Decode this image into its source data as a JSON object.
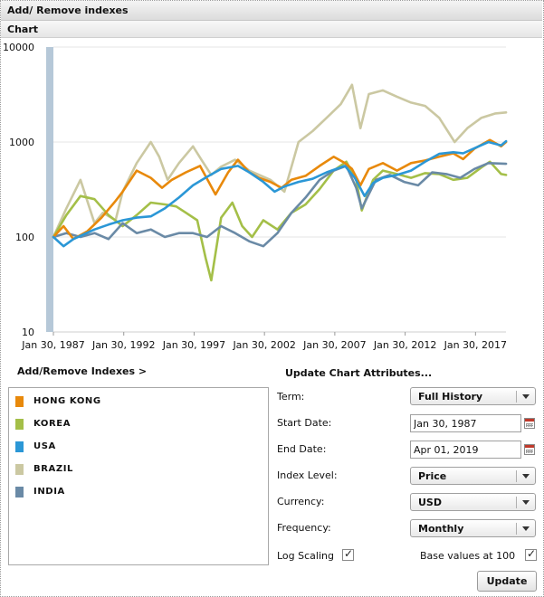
{
  "panel": {
    "title": "Add/ Remove indexes",
    "chart_tab": "Chart"
  },
  "chart_data": {
    "type": "line",
    "title": "",
    "xlabel": "",
    "ylabel": "",
    "log_scale": true,
    "grid": true,
    "x_start": "1987-01-30",
    "x_end": "2019-04-01",
    "ylim": [
      10,
      10000
    ],
    "y_ticks": [
      "10",
      "100",
      "1000",
      "10000"
    ],
    "x_ticks": [
      "Jan 30, 1987",
      "Jan 30, 1992",
      "Jan 30, 1997",
      "Jan 30, 2002",
      "Jan 30, 2007",
      "Jan 30, 2012",
      "Jan 30, 2017"
    ],
    "series": [
      {
        "name": "HONG KONG",
        "color": "#e8890b",
        "x": [
          1987.08,
          1987.8,
          1988.5,
          1989.5,
          1990.5,
          1991.5,
          1992,
          1993,
          1994,
          1994.8,
          1995.5,
          1996.5,
          1997.5,
          1998.6,
          1999.5,
          2000.2,
          2001,
          2001.7,
          2002.5,
          2003.3,
          2004,
          2005,
          2006,
          2007,
          2007.8,
          2008.3,
          2008.9,
          2009.5,
          2010.5,
          2011.5,
          2012.5,
          2013.5,
          2014.5,
          2015.5,
          2016.2,
          2017,
          2018.1,
          2018.9,
          2019.25
        ],
        "y": [
          100,
          130,
          95,
          115,
          160,
          240,
          300,
          500,
          420,
          330,
          400,
          480,
          560,
          280,
          480,
          650,
          480,
          420,
          380,
          330,
          400,
          440,
          560,
          700,
          600,
          520,
          350,
          520,
          600,
          500,
          600,
          640,
          700,
          760,
          660,
          850,
          1050,
          900,
          1000
        ]
      },
      {
        "name": "KOREA",
        "color": "#a4bf48",
        "x": [
          1987.08,
          1988,
          1989,
          1990,
          1991,
          1992,
          1993,
          1994,
          1995,
          1995.8,
          1996.5,
          1997.3,
          1997.9,
          1998.3,
          1999,
          1999.8,
          2000.5,
          2001.2,
          2002,
          2003,
          2004,
          2005,
          2006,
          2007,
          2007.9,
          2008.6,
          2009,
          2009.8,
          2010.5,
          2011.5,
          2012.5,
          2013.5,
          2014.5,
          2015.5,
          2016.5,
          2017.5,
          2018.1,
          2018.9,
          2019.25
        ],
        "y": [
          100,
          170,
          270,
          250,
          170,
          130,
          170,
          230,
          220,
          210,
          180,
          150,
          60,
          35,
          160,
          230,
          130,
          100,
          150,
          120,
          180,
          220,
          320,
          500,
          620,
          400,
          190,
          400,
          500,
          460,
          420,
          470,
          460,
          400,
          420,
          540,
          620,
          460,
          450
        ]
      },
      {
        "name": "USA",
        "color": "#2b97d6",
        "x": [
          1987.08,
          1987.8,
          1988.5,
          1990,
          1991,
          1992,
          1993,
          1994,
          1995,
          1996,
          1997,
          1998,
          1999,
          2000.2,
          2001,
          2002,
          2002.8,
          2003.5,
          2004.5,
          2005.5,
          2006.5,
          2007.8,
          2008.5,
          2009.2,
          2009.8,
          2010.5,
          2011.5,
          2012.5,
          2013.5,
          2014.5,
          2015.5,
          2016.2,
          2017,
          2018,
          2018.9,
          2019.25
        ],
        "y": [
          100,
          80,
          95,
          120,
          135,
          150,
          160,
          165,
          200,
          260,
          350,
          430,
          520,
          560,
          480,
          380,
          300,
          340,
          380,
          410,
          480,
          560,
          420,
          270,
          370,
          420,
          450,
          500,
          620,
          750,
          780,
          760,
          860,
          1000,
          920,
          1020
        ]
      },
      {
        "name": "BRAZIL",
        "color": "#cbc8a2",
        "x": [
          1987.08,
          1988,
          1989,
          1990,
          1990.6,
          1991.5,
          1992,
          1993,
          1994,
          1994.6,
          1995.2,
          1996,
          1997,
          1997.6,
          1998.3,
          1999,
          2000,
          2001,
          2002.5,
          2003.5,
          2004.5,
          2005.5,
          2006.5,
          2007.5,
          2008.3,
          2008.9,
          2009.5,
          2010.5,
          2011.5,
          2012.5,
          2013.5,
          2014.5,
          2015.6,
          2016.5,
          2017.5,
          2018.5,
          2019.25
        ],
        "y": [
          100,
          200,
          400,
          140,
          180,
          150,
          300,
          600,
          1000,
          700,
          400,
          600,
          900,
          650,
          450,
          550,
          650,
          500,
          400,
          300,
          1000,
          1300,
          1800,
          2500,
          4000,
          1400,
          3200,
          3500,
          3000,
          2600,
          2400,
          1800,
          1000,
          1400,
          1800,
          2000,
          2050
        ]
      },
      {
        "name": "INDIA",
        "color": "#6a8aa6",
        "x": [
          1987.08,
          1988,
          1989,
          1990,
          1991,
          1992,
          1993,
          1994,
          1995,
          1996,
          1997,
          1998,
          1999,
          2000,
          2001,
          2002,
          2003,
          2004,
          2005,
          2006,
          2007,
          2007.9,
          2008.6,
          2009,
          2010,
          2011,
          2012,
          2013,
          2014,
          2015,
          2016,
          2017,
          2018,
          2019.25
        ],
        "y": [
          100,
          110,
          100,
          110,
          95,
          140,
          110,
          120,
          100,
          110,
          110,
          100,
          130,
          110,
          90,
          80,
          110,
          180,
          260,
          400,
          500,
          560,
          330,
          200,
          400,
          450,
          380,
          350,
          480,
          460,
          420,
          520,
          600,
          590
        ]
      }
    ]
  },
  "left_panel": {
    "heading": "Add/Remove Indexes >",
    "legend": [
      "HONG KONG",
      "KOREA",
      "USA",
      "BRAZIL",
      "INDIA"
    ],
    "legend_colors": [
      "#e8890b",
      "#a4bf48",
      "#2b97d6",
      "#cbc8a2",
      "#6a8aa6"
    ]
  },
  "attributes": {
    "heading": "Update Chart Attributes...",
    "term_label": "Term:",
    "term_value": "Full History",
    "start_label": "Start Date:",
    "start_value": "Jan 30, 1987",
    "end_label": "End Date:",
    "end_value": "Apr 01, 2019",
    "index_label": "Index Level:",
    "index_value": "Price",
    "currency_label": "Currency:",
    "currency_value": "USD",
    "frequency_label": "Frequency:",
    "frequency_value": "Monthly",
    "log_label": "Log Scaling",
    "log_checked": true,
    "base_label": "Base values at 100",
    "base_checked": true,
    "update_label": "Update"
  },
  "icons": {
    "calendar": "calendar-icon",
    "check": "checkmark-icon",
    "dropdown": "chevron-down-icon"
  }
}
